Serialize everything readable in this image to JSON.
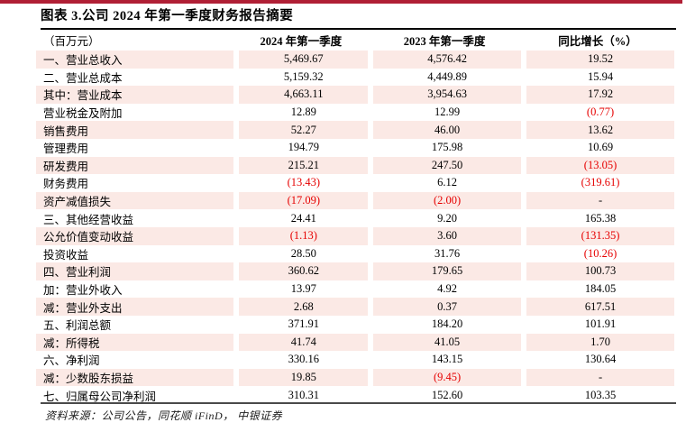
{
  "title": "图表 3.公司 2024 年第一季度财务报告摘要",
  "table": {
    "columns": [
      "（百万元）",
      "2024 年第一季度",
      "2023 年第一季度",
      "同比增长（%）"
    ],
    "rows": [
      {
        "label": "一、营业总收入",
        "q1_2024": "5,469.67",
        "q1_2023": "4,576.42",
        "yoy": "19.52"
      },
      {
        "label": "二、营业总成本",
        "q1_2024": "5,159.32",
        "q1_2023": "4,449.89",
        "yoy": "15.94"
      },
      {
        "label": "其中：营业成本",
        "q1_2024": "4,663.11",
        "q1_2023": "3,954.63",
        "yoy": "17.92"
      },
      {
        "label": "营业税金及附加",
        "q1_2024": "12.89",
        "q1_2023": "12.99",
        "yoy": "(0.77)"
      },
      {
        "label": "销售费用",
        "q1_2024": "52.27",
        "q1_2023": "46.00",
        "yoy": "13.62"
      },
      {
        "label": "管理费用",
        "q1_2024": "194.79",
        "q1_2023": "175.98",
        "yoy": "10.69"
      },
      {
        "label": "研发费用",
        "q1_2024": "215.21",
        "q1_2023": "247.50",
        "yoy": "(13.05)"
      },
      {
        "label": "财务费用",
        "q1_2024": "(13.43)",
        "q1_2023": "6.12",
        "yoy": "(319.61)"
      },
      {
        "label": "资产减值损失",
        "q1_2024": "(17.09)",
        "q1_2023": "(2.00)",
        "yoy": "-"
      },
      {
        "label": "三、其他经营收益",
        "q1_2024": "24.41",
        "q1_2023": "9.20",
        "yoy": "165.38"
      },
      {
        "label": "公允价值变动收益",
        "q1_2024": "(1.13)",
        "q1_2023": "3.60",
        "yoy": "(131.35)"
      },
      {
        "label": "投资收益",
        "q1_2024": "28.50",
        "q1_2023": "31.76",
        "yoy": "(10.26)"
      },
      {
        "label": "四、营业利润",
        "q1_2024": "360.62",
        "q1_2023": "179.65",
        "yoy": "100.73"
      },
      {
        "label": "加：营业外收入",
        "q1_2024": "13.97",
        "q1_2023": "4.92",
        "yoy": "184.05"
      },
      {
        "label": "减：营业外支出",
        "q1_2024": "2.68",
        "q1_2023": "0.37",
        "yoy": "617.51"
      },
      {
        "label": "五、利润总额",
        "q1_2024": "371.91",
        "q1_2023": "184.20",
        "yoy": "101.91"
      },
      {
        "label": "减：所得税",
        "q1_2024": "41.74",
        "q1_2023": "41.05",
        "yoy": "1.70"
      },
      {
        "label": "六、净利润",
        "q1_2024": "330.16",
        "q1_2023": "143.15",
        "yoy": "130.64"
      },
      {
        "label": "减：少数股东损益",
        "q1_2024": "19.85",
        "q1_2023": "(9.45)",
        "yoy": "-"
      },
      {
        "label": "七、归属母公司净利润",
        "q1_2024": "310.31",
        "q1_2023": "152.60",
        "yoy": "103.35"
      }
    ]
  },
  "footer": {
    "source": "资料来源：公司公告，同花顺 iFinD， 中银证券"
  },
  "colors": {
    "accent_bar": "#b01f35",
    "row_stripe": "#fbe9e5",
    "negative": "#e60000",
    "rule_dark": "#4a4a4a"
  }
}
